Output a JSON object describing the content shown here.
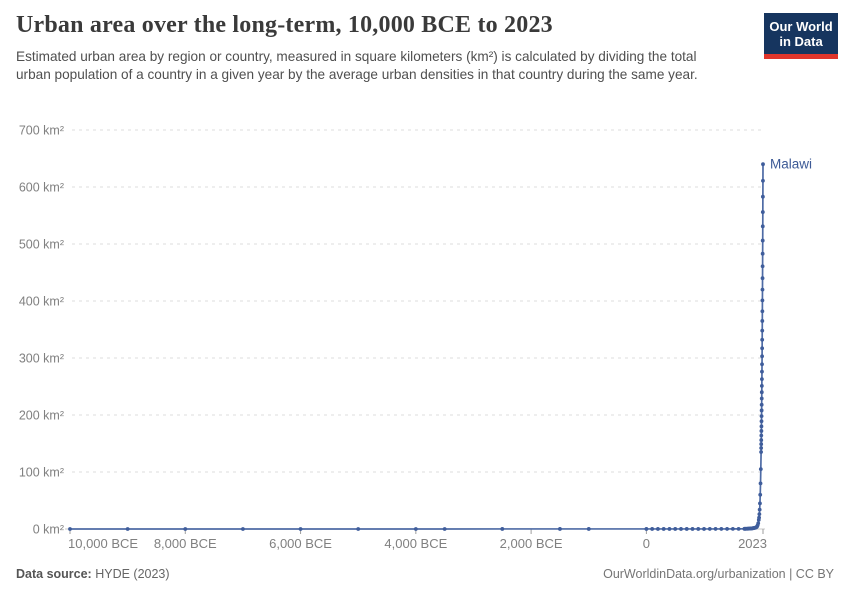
{
  "header": {
    "title": "Urban area over the long-term, 10,000 BCE to 2023",
    "subtitle": "Estimated urban area by region or country, measured in square kilometers (km²) is calculated by dividing the total urban population of a country in a given year by the average urban densities in that country during the same year.",
    "logo": {
      "line1": "Our World",
      "line2": "in Data",
      "bg_color": "#16355f",
      "accent_color": "#e0352b"
    }
  },
  "footer": {
    "source_label": "Data source:",
    "source_value": " HYDE (2023)",
    "right_text": "OurWorldinData.org/urbanization | CC BY"
  },
  "chart_data": {
    "type": "line",
    "title": "Urban area over the long-term, 10,000 BCE to 2023",
    "unit": "km²",
    "xlim": [
      -10000,
      2023
    ],
    "ylim": [
      0,
      700
    ],
    "grid": "horizontal dashed",
    "legend_position": "end-of-line label",
    "x_ticks": [
      {
        "year": -10000,
        "label": "10,000 BCE"
      },
      {
        "year": -8000,
        "label": "8,000 BCE"
      },
      {
        "year": -6000,
        "label": "6,000 BCE"
      },
      {
        "year": -4000,
        "label": "4,000 BCE"
      },
      {
        "year": -2000,
        "label": "2,000 BCE"
      },
      {
        "year": 0,
        "label": "0"
      },
      {
        "year": 2023,
        "label": "2023"
      }
    ],
    "y_ticks": [
      {
        "value": 0,
        "label": "0 km²"
      },
      {
        "value": 100,
        "label": "100 km²"
      },
      {
        "value": 200,
        "label": "200 km²"
      },
      {
        "value": 300,
        "label": "300 km²"
      },
      {
        "value": 400,
        "label": "400 km²"
      },
      {
        "value": 500,
        "label": "500 km²"
      },
      {
        "value": 600,
        "label": "600 km²"
      },
      {
        "value": 700,
        "label": "700 km²"
      }
    ],
    "colors": {
      "line": "#4e6ba5",
      "dot": "#3f5d9b",
      "entity_label": "#3d5a96",
      "grid": "#dcdcdc",
      "axis": "#c9c9c9",
      "tick": "#9e9e9e",
      "tick_text": "#808080"
    },
    "series": [
      {
        "name": "Malawi",
        "points": [
          [
            -10000,
            0.05
          ],
          [
            -9000,
            0.05
          ],
          [
            -8000,
            0.05
          ],
          [
            -7000,
            0.05
          ],
          [
            -6000,
            0.06
          ],
          [
            -5000,
            0.06
          ],
          [
            -4000,
            0.06
          ],
          [
            -3500,
            0.06
          ],
          [
            -2500,
            0.07
          ],
          [
            -1500,
            0.07
          ],
          [
            -1000,
            0.07
          ],
          [
            0,
            0.08
          ],
          [
            100,
            0.08
          ],
          [
            200,
            0.08
          ],
          [
            300,
            0.09
          ],
          [
            400,
            0.09
          ],
          [
            500,
            0.09
          ],
          [
            600,
            0.1
          ],
          [
            700,
            0.1
          ],
          [
            800,
            0.1
          ],
          [
            900,
            0.11
          ],
          [
            1000,
            0.11
          ],
          [
            1100,
            0.12
          ],
          [
            1200,
            0.12
          ],
          [
            1300,
            0.13
          ],
          [
            1400,
            0.14
          ],
          [
            1500,
            0.15
          ],
          [
            1600,
            0.18
          ],
          [
            1700,
            0.3
          ],
          [
            1710,
            0.33
          ],
          [
            1720,
            0.36
          ],
          [
            1730,
            0.39
          ],
          [
            1740,
            0.43
          ],
          [
            1750,
            0.47
          ],
          [
            1760,
            0.52
          ],
          [
            1770,
            0.57
          ],
          [
            1780,
            0.63
          ],
          [
            1790,
            0.7
          ],
          [
            1800,
            0.78
          ],
          [
            1810,
            0.87
          ],
          [
            1820,
            0.97
          ],
          [
            1830,
            1.1
          ],
          [
            1840,
            1.2
          ],
          [
            1850,
            1.4
          ],
          [
            1860,
            1.6
          ],
          [
            1870,
            1.8
          ],
          [
            1880,
            2.0
          ],
          [
            1890,
            2.3
          ],
          [
            1900,
            2.6
          ],
          [
            1910,
            3.3
          ],
          [
            1920,
            4.5
          ],
          [
            1930,
            6.5
          ],
          [
            1940,
            10
          ],
          [
            1950,
            16
          ],
          [
            1955,
            20
          ],
          [
            1960,
            26
          ],
          [
            1965,
            34
          ],
          [
            1970,
            45
          ],
          [
            1975,
            60
          ],
          [
            1980,
            80
          ],
          [
            1985,
            105
          ],
          [
            1990,
            135
          ],
          [
            1991,
            142
          ],
          [
            1992,
            149
          ],
          [
            1993,
            156
          ],
          [
            1994,
            164
          ],
          [
            1995,
            172
          ],
          [
            1996,
            180
          ],
          [
            1997,
            189
          ],
          [
            1998,
            198
          ],
          [
            1999,
            208
          ],
          [
            2000,
            218
          ],
          [
            2001,
            229
          ],
          [
            2002,
            240
          ],
          [
            2003,
            251
          ],
          [
            2004,
            263
          ],
          [
            2005,
            276
          ],
          [
            2006,
            289
          ],
          [
            2007,
            303
          ],
          [
            2008,
            317
          ],
          [
            2009,
            332
          ],
          [
            2010,
            348
          ],
          [
            2011,
            365
          ],
          [
            2012,
            382
          ],
          [
            2013,
            401
          ],
          [
            2014,
            420
          ],
          [
            2015,
            440
          ],
          [
            2016,
            461
          ],
          [
            2017,
            483
          ],
          [
            2018,
            506
          ],
          [
            2019,
            531
          ],
          [
            2020,
            556
          ],
          [
            2021,
            583
          ],
          [
            2022,
            611
          ],
          [
            2023,
            640
          ]
        ]
      }
    ]
  }
}
